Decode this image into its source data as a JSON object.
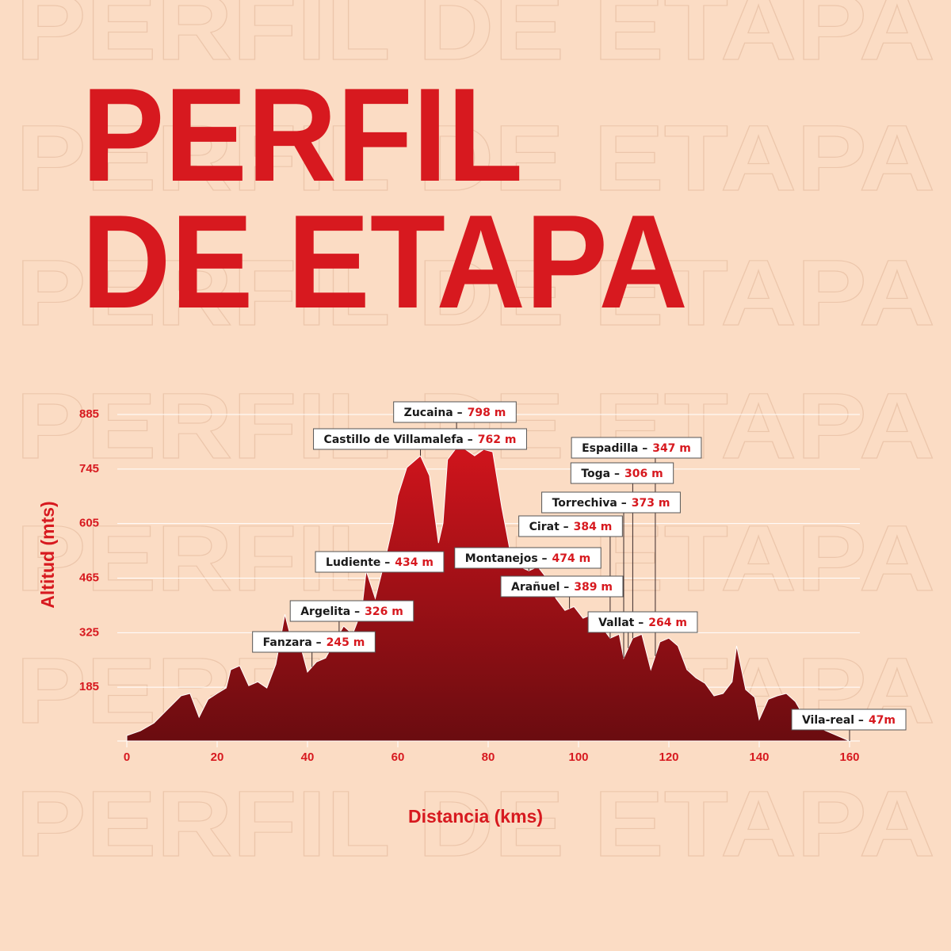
{
  "watermark": "PERFIL DE ETAPA",
  "chart_data": {
    "type": "area",
    "title_lines": [
      "PERFIL",
      "DE ETAPA"
    ],
    "xlabel": "Distancia (kms)",
    "ylabel": "Altitud (mts)",
    "x": [
      0,
      3,
      6,
      9,
      12,
      14,
      16,
      18,
      20,
      22,
      23,
      25,
      27,
      29,
      31,
      33,
      35,
      37,
      38,
      40,
      42,
      44,
      46,
      48,
      50,
      52,
      53,
      55,
      57,
      59,
      60,
      62,
      64,
      65,
      67,
      69,
      70,
      71,
      73,
      75,
      77,
      79,
      81,
      83,
      85,
      87,
      89,
      91,
      93,
      95,
      97,
      99,
      101,
      103,
      105,
      107,
      109,
      110,
      112,
      114,
      116,
      118,
      120,
      122,
      124,
      126,
      128,
      130,
      132,
      134,
      135,
      137,
      139,
      140,
      142,
      144,
      146,
      148,
      150,
      152,
      154,
      156,
      158,
      160
    ],
    "values": [
      61,
      73,
      93,
      128,
      163,
      169,
      108,
      154,
      169,
      183,
      230,
      240,
      189,
      199,
      183,
      244,
      372,
      281,
      311,
      224,
      250,
      260,
      301,
      342,
      321,
      382,
      484,
      413,
      504,
      606,
      677,
      749,
      769,
      779,
      728,
      555,
      606,
      769,
      800,
      795,
      779,
      795,
      789,
      647,
      525,
      494,
      484,
      494,
      464,
      413,
      382,
      392,
      362,
      372,
      342,
      311,
      321,
      260,
      311,
      321,
      230,
      301,
      311,
      291,
      230,
      209,
      195,
      163,
      169,
      199,
      291,
      179,
      159,
      102,
      154,
      163,
      169,
      148,
      108,
      87,
      77,
      67,
      57,
      47
    ],
    "xlim": [
      0,
      160
    ],
    "ylim": [
      47,
      885
    ],
    "xticks": [
      0,
      20,
      40,
      60,
      80,
      100,
      120,
      140,
      160
    ],
    "yticks": [
      185,
      325,
      465,
      605,
      745,
      885
    ],
    "grid": true,
    "color_top": "#d0141c",
    "color_bottom": "#6a0c10",
    "annotations": [
      {
        "label": "Zucaina –",
        "value": 798,
        "value_label": "798 m",
        "x": 73
      },
      {
        "label": "Castillo de Villamalefa –",
        "value": 762,
        "value_label": "762 m",
        "x": 65
      },
      {
        "label": "Espadilla –",
        "value": 347,
        "value_label": "347 m",
        "x": 117
      },
      {
        "label": "Toga –",
        "value": 306,
        "value_label": "306 m",
        "x": 112
      },
      {
        "label": "Torrechiva –",
        "value": 373,
        "value_label": "373 m",
        "x": 110
      },
      {
        "label": "Cirat –",
        "value": 384,
        "value_label": "384 m",
        "x": 107
      },
      {
        "label": "Montanejos –",
        "value": 474,
        "value_label": "474 m",
        "x": 89
      },
      {
        "label": "Ludiente –",
        "value": 434,
        "value_label": "434 m",
        "x": 53
      },
      {
        "label": "Arañuel –",
        "value": 389,
        "value_label": "389 m",
        "x": 98
      },
      {
        "label": "Vallat –",
        "value": 264,
        "value_label": "264 m",
        "x": 111
      },
      {
        "label": "Argelita –",
        "value": 326,
        "value_label": "326 m",
        "x": 47
      },
      {
        "label": "Fanzara –",
        "value": 245,
        "value_label": "245 m",
        "x": 41
      },
      {
        "label": "Vila-real –",
        "value": 47,
        "value_label": "47m",
        "x": 160
      }
    ]
  }
}
